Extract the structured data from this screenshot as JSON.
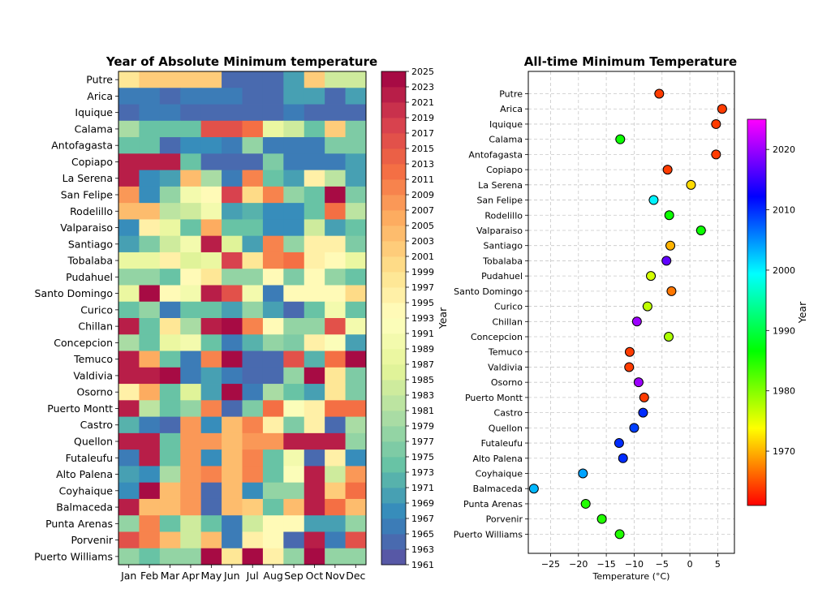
{
  "chart_data": [
    {
      "type": "heatmap",
      "title": "Year of Absolute Minimum temperature",
      "xlabel": "",
      "ylabel": "",
      "months": [
        "Jan",
        "Feb",
        "Mar",
        "Apr",
        "May",
        "Jun",
        "Jul",
        "Aug",
        "Sep",
        "Oct",
        "Nov",
        "Dec"
      ],
      "stations": [
        "Putre",
        "Arica",
        "Iquique",
        "Calama",
        "Antofagasta",
        "Copiapo",
        "La Serena",
        "San Felipe",
        "Rodelillo",
        "Valparaiso",
        "Santiago",
        "Tobalaba",
        "Pudahuel",
        "Santo Domingo",
        "Curico",
        "Chillan",
        "Concepcion",
        "Temuco",
        "Valdivia",
        "Osorno",
        "Puerto Montt",
        "Castro",
        "Quellon",
        "Futaleufu",
        "Alto Palena",
        "Coyhaique",
        "Balmaceda",
        "Punta Arenas",
        "Porvenir",
        "Puerto Williams"
      ],
      "colorbar": {
        "label": "Year",
        "min": 1961,
        "max": 2025,
        "ticks": [
          1961,
          1963,
          1965,
          1967,
          1969,
          1971,
          1973,
          1975,
          1977,
          1979,
          1981,
          1983,
          1985,
          1987,
          1989,
          1991,
          1993,
          1995,
          1997,
          1999,
          2001,
          2003,
          2005,
          2007,
          2009,
          2011,
          2013,
          2015,
          2017,
          2019,
          2021,
          2023,
          2025
        ]
      },
      "values": [
        [
          1997,
          2001,
          2001,
          2001,
          2001,
          1963,
          1963,
          1963,
          1970,
          2001,
          1983,
          1983
        ],
        [
          1966,
          1966,
          1963,
          1966,
          1966,
          1966,
          1963,
          1963,
          1970,
          1970,
          1963,
          1970
        ],
        [
          1964,
          1966,
          1966,
          1964,
          1964,
          1964,
          1963,
          1963,
          1966,
          1963,
          1964,
          1964
        ],
        [
          1979,
          1973,
          1973,
          1973,
          2015,
          2015,
          2011,
          1987,
          1983,
          1973,
          2001,
          1975
        ],
        [
          1973,
          1973,
          1964,
          1967,
          1967,
          1966,
          1977,
          1966,
          1966,
          1966,
          1975,
          1975
        ],
        [
          2021,
          2021,
          2021,
          1973,
          1964,
          1964,
          1964,
          1975,
          1966,
          1966,
          1966,
          1969
        ],
        [
          2021,
          1967,
          1969,
          2003,
          1979,
          1966,
          2009,
          1973,
          1969,
          1995,
          1981,
          1969
        ],
        [
          2007,
          1967,
          1977,
          1989,
          1993,
          2017,
          1999,
          2009,
          1977,
          1973,
          2023,
          1975
        ],
        [
          2003,
          2003,
          1981,
          1983,
          1989,
          1969,
          1971,
          1967,
          1967,
          1973,
          2011,
          1981
        ],
        [
          1967,
          1995,
          1987,
          1973,
          2005,
          1973,
          1973,
          1967,
          1967,
          1983,
          1969,
          1973
        ],
        [
          1969,
          1975,
          1983,
          1989,
          2021,
          1985,
          1969,
          2009,
          1977,
          1995,
          1995,
          1975
        ],
        [
          1987,
          1987,
          1995,
          1985,
          1987,
          2017,
          1997,
          2009,
          2011,
          1995,
          1993,
          1987
        ],
        [
          1977,
          1977,
          1973,
          1993,
          1997,
          1977,
          1977,
          1993,
          1975,
          1993,
          1977,
          1973
        ],
        [
          1987,
          2023,
          1993,
          1989,
          2021,
          2015,
          1989,
          1965,
          1993,
          1993,
          1993,
          1999
        ],
        [
          1973,
          1977,
          1965,
          1973,
          1973,
          1969,
          1977,
          1969,
          1963,
          1973,
          1989,
          1973
        ],
        [
          2021,
          1973,
          1997,
          1979,
          2021,
          2023,
          2009,
          1993,
          1977,
          1977,
          2015,
          1989
        ],
        [
          1979,
          1973,
          1987,
          1989,
          1973,
          1965,
          1971,
          1977,
          1975,
          1995,
          1991,
          1969
        ],
        [
          2021,
          2005,
          1973,
          1965,
          2009,
          2023,
          1963,
          1963,
          2015,
          1971,
          2011,
          2023
        ],
        [
          2021,
          2021,
          2023,
          1965,
          1969,
          1965,
          1963,
          1963,
          1977,
          2023,
          1997,
          1975
        ],
        [
          1995,
          2005,
          1973,
          1985,
          1969,
          2023,
          1965,
          1979,
          1973,
          1969,
          1997,
          1975
        ],
        [
          2021,
          1981,
          1973,
          1977,
          2009,
          1963,
          1975,
          2011,
          1991,
          1995,
          2011,
          2011
        ],
        [
          1971,
          1965,
          1963,
          2007,
          1967,
          2003,
          2009,
          1995,
          1975,
          1995,
          1963,
          1979
        ],
        [
          2021,
          2021,
          1973,
          2007,
          2007,
          2003,
          2007,
          2007,
          2021,
          2021,
          2021,
          1977
        ],
        [
          1965,
          2021,
          1973,
          2007,
          1967,
          2003,
          2009,
          1973,
          1989,
          1963,
          1995,
          1967
        ],
        [
          1969,
          1967,
          1979,
          2007,
          2009,
          2003,
          2009,
          1973,
          1991,
          2021,
          1983,
          2007
        ],
        [
          1967,
          2023,
          2003,
          2007,
          1963,
          2003,
          1967,
          1977,
          1977,
          2021,
          2001,
          2011
        ],
        [
          2021,
          2003,
          2003,
          2007,
          1963,
          2003,
          2001,
          1973,
          2003,
          2021,
          2011,
          2003
        ],
        [
          1977,
          2009,
          1973,
          1983,
          1973,
          1965,
          1983,
          1993,
          1993,
          1969,
          1969,
          1977
        ],
        [
          2015,
          2009,
          2003,
          1983,
          2003,
          1965,
          1995,
          1993,
          1963,
          2021,
          1965,
          2015
        ],
        [
          1977,
          1973,
          1977,
          1977,
          2023,
          1997,
          2023,
          1995,
          1977,
          2023,
          1977,
          1977
        ]
      ]
    },
    {
      "type": "scatter",
      "title": "All-time Minimum Temperature",
      "xlabel": "Temperature (°C)",
      "ylabel": "",
      "xlim": [
        -29,
        8
      ],
      "xticks": [
        -25,
        -20,
        -15,
        -10,
        -5,
        0,
        5
      ],
      "xtick_labels": [
        "−25",
        "−20",
        "−15",
        "−10",
        "−5",
        "0",
        "5"
      ],
      "grid": true,
      "colorbar": {
        "label": "Year",
        "min": 1961,
        "max": 2025,
        "ticks": [
          1970,
          1980,
          1990,
          2000,
          2010,
          2020
        ]
      },
      "points": [
        {
          "station": "Putre",
          "x": -5.5,
          "year": 1964
        },
        {
          "station": "Arica",
          "x": 5.8,
          "year": 1964
        },
        {
          "station": "Iquique",
          "x": 4.7,
          "year": 1964
        },
        {
          "station": "Calama",
          "x": -12.5,
          "year": 1986
        },
        {
          "station": "Antofagasta",
          "x": 4.7,
          "year": 1964
        },
        {
          "station": "Copiapo",
          "x": -4.0,
          "year": 1964
        },
        {
          "station": "La Serena",
          "x": 0.2,
          "year": 1972
        },
        {
          "station": "San Felipe",
          "x": -6.5,
          "year": 2000
        },
        {
          "station": "Rodelillo",
          "x": -3.7,
          "year": 1986
        },
        {
          "station": "Valparaiso",
          "x": 2.0,
          "year": 1986
        },
        {
          "station": "Santiago",
          "x": -3.5,
          "year": 1970
        },
        {
          "station": "Tobalaba",
          "x": -4.2,
          "year": 2017
        },
        {
          "station": "Pudahuel",
          "x": -7.0,
          "year": 1976
        },
        {
          "station": "Santo Domingo",
          "x": -3.3,
          "year": 1967
        },
        {
          "station": "Curico",
          "x": -7.6,
          "year": 1977
        },
        {
          "station": "Chillan",
          "x": -9.5,
          "year": 2020
        },
        {
          "station": "Concepcion",
          "x": -3.8,
          "year": 1978
        },
        {
          "station": "Temuco",
          "x": -10.8,
          "year": 1964
        },
        {
          "station": "Valdivia",
          "x": -10.9,
          "year": 1964
        },
        {
          "station": "Osorno",
          "x": -9.2,
          "year": 2020
        },
        {
          "station": "Puerto Montt",
          "x": -8.2,
          "year": 1964
        },
        {
          "station": "Castro",
          "x": -8.4,
          "year": 2010
        },
        {
          "station": "Quellon",
          "x": -10.0,
          "year": 2009
        },
        {
          "station": "Futaleufu",
          "x": -12.7,
          "year": 2010
        },
        {
          "station": "Alto Palena",
          "x": -12.0,
          "year": 2010
        },
        {
          "station": "Coyhaique",
          "x": -19.2,
          "year": 2004
        },
        {
          "station": "Balmaceda",
          "x": -28.0,
          "year": 2003
        },
        {
          "station": "Punta Arenas",
          "x": -18.7,
          "year": 1985
        },
        {
          "station": "Porvenir",
          "x": -15.8,
          "year": 1985
        },
        {
          "station": "Puerto Williams",
          "x": -12.6,
          "year": 1985
        }
      ]
    }
  ]
}
